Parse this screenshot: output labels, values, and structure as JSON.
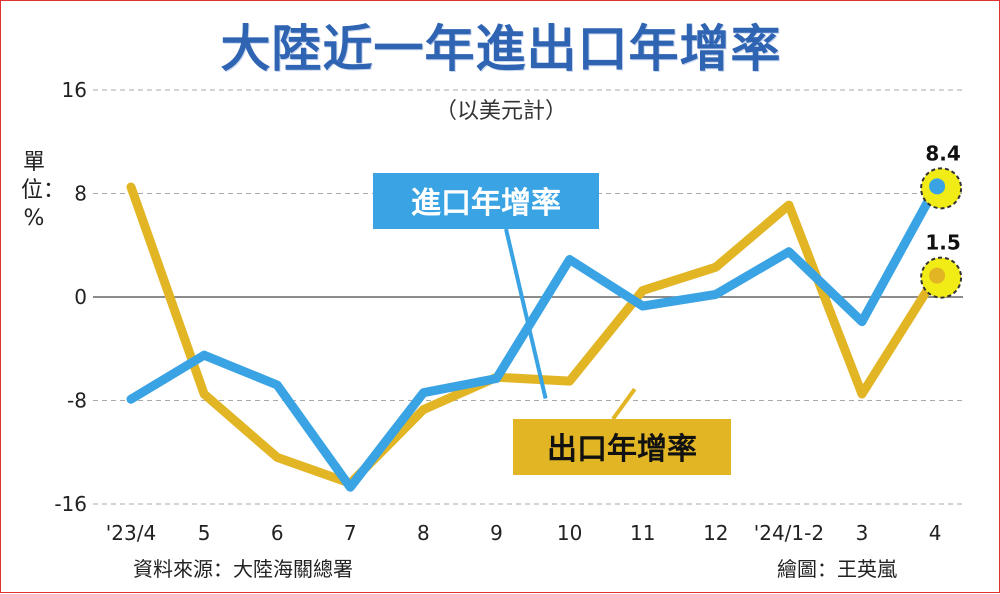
{
  "title": "大陸近一年進出口年增率",
  "subtitle": "（以美元計）",
  "unit_label": "單位：%",
  "source": "資料來源：大陸海關總署",
  "credit": "繪圖：王英嵐",
  "colors": {
    "import": "#3aa3e3",
    "export": "#e2b524",
    "title": "#2f64b3",
    "highlight": "#f2ec16",
    "grid": "#aaaaaa"
  },
  "chart_data": {
    "type": "line",
    "categories": [
      "'23/4",
      "5",
      "6",
      "7",
      "8",
      "9",
      "10",
      "11",
      "12",
      "'24/1-2",
      "3",
      "4"
    ],
    "series": [
      {
        "name": "進口年增率",
        "key": "import",
        "values": [
          -7.9,
          -4.5,
          -6.8,
          -14.7,
          -7.4,
          -6.3,
          2.9,
          -0.7,
          0.2,
          3.5,
          -1.9,
          8.4
        ]
      },
      {
        "name": "出口年增率",
        "key": "export",
        "values": [
          8.5,
          -7.5,
          -12.4,
          -14.4,
          -8.7,
          -6.2,
          -6.5,
          0.5,
          2.3,
          7.1,
          -7.5,
          1.5
        ]
      }
    ],
    "ylim": [
      -16,
      16
    ],
    "yticks": [
      16,
      8,
      0,
      -8,
      -16
    ],
    "grid": true,
    "annotations": [
      {
        "label": "8.4",
        "series": "import",
        "index": 11
      },
      {
        "label": "1.5",
        "series": "export",
        "index": 11
      }
    ]
  }
}
